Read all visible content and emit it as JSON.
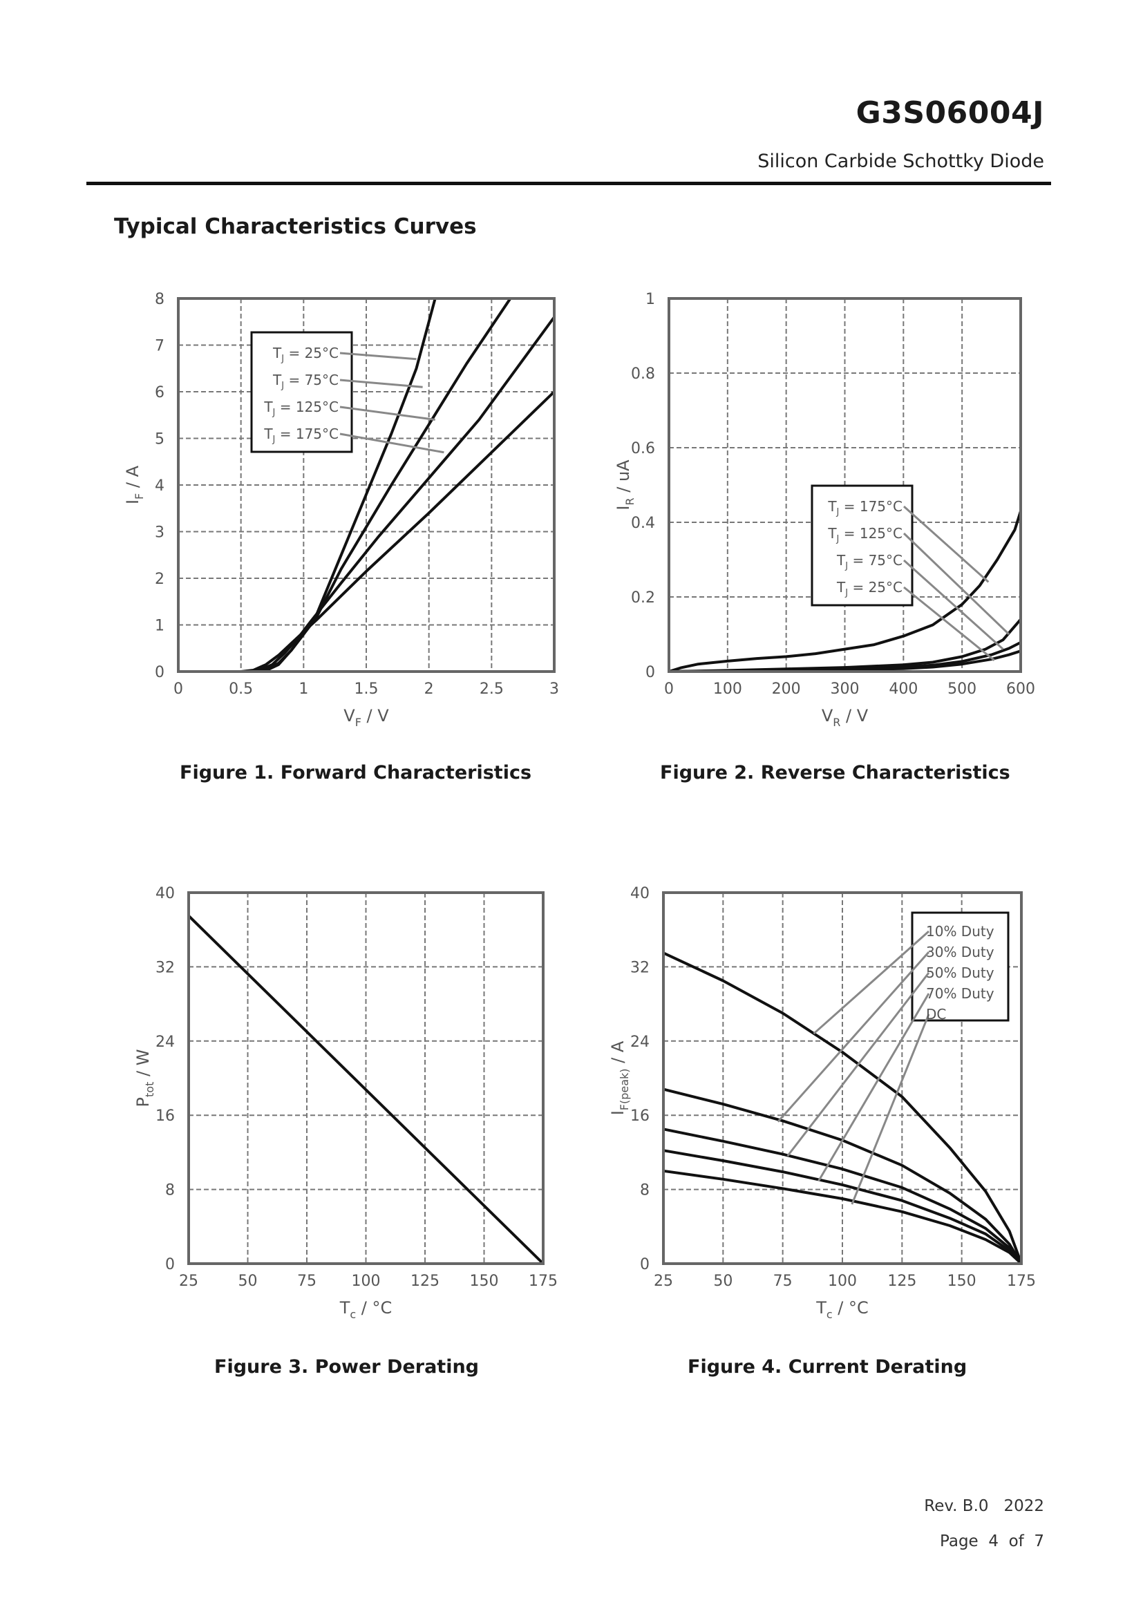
{
  "header": {
    "part_number": "G3S06004J",
    "description": "Silicon Carbide Schottky Diode"
  },
  "section_title": "Typical Characteristics Curves",
  "footer": {
    "revision": "Rev. B.0   2022",
    "page": "Page  4  of  7"
  },
  "chart_data": [
    {
      "type": "line",
      "title": "Figure 1. Forward Characteristics",
      "xlabel_main": "V",
      "xlabel_sub": "F",
      "xlabel_unit": " / V",
      "ylabel_main": "I",
      "ylabel_sub": "F",
      "ylabel_unit": " / A",
      "xlim": [
        0,
        3
      ],
      "ylim": [
        0,
        8
      ],
      "x_ticks": [
        0,
        0.5,
        1,
        1.5,
        2,
        2.5,
        3
      ],
      "x_tick_labels": [
        "0",
        "0.5",
        "1",
        "1.5",
        "2",
        "2.5",
        "3"
      ],
      "y_ticks": [
        0,
        1,
        2,
        3,
        4,
        5,
        6,
        7,
        8
      ],
      "y_tick_labels": [
        "0",
        "1",
        "2",
        "3",
        "4",
        "5",
        "6",
        "7",
        "8"
      ],
      "legend_position": "top-left",
      "legend": [
        {
          "label": "T",
          "sub": "J",
          "rest": " = 25°C",
          "target": [
            1.9,
            6.7
          ]
        },
        {
          "label": "T",
          "sub": "J",
          "rest": " = 75°C",
          "target": [
            1.95,
            6.1
          ]
        },
        {
          "label": "T",
          "sub": "J",
          "rest": " = 125°C",
          "target": [
            2.05,
            5.4
          ]
        },
        {
          "label": "T",
          "sub": "J",
          "rest": " = 175°C",
          "target": [
            2.12,
            4.7
          ]
        }
      ],
      "series": [
        {
          "name": "TJ = 25°C",
          "x": [
            0,
            0.6,
            0.7,
            0.8,
            0.9,
            1.0,
            1.1,
            1.3,
            1.5,
            1.7,
            1.9,
            2.05
          ],
          "y": [
            0,
            0,
            0.02,
            0.15,
            0.45,
            0.8,
            1.2,
            2.5,
            3.8,
            5.1,
            6.5,
            8
          ]
        },
        {
          "name": "TJ = 75°C",
          "x": [
            0,
            0.6,
            0.7,
            0.8,
            0.9,
            1.0,
            1.1,
            1.3,
            1.5,
            1.7,
            2.0,
            2.3,
            2.65
          ],
          "y": [
            0,
            0,
            0.04,
            0.18,
            0.45,
            0.8,
            1.15,
            2.2,
            3.1,
            4.0,
            5.3,
            6.6,
            8
          ]
        },
        {
          "name": "TJ = 125°C",
          "x": [
            0,
            0.55,
            0.65,
            0.75,
            0.85,
            0.95,
            1.05,
            1.3,
            1.6,
            2.0,
            2.4,
            3.0
          ],
          "y": [
            0,
            0,
            0.03,
            0.15,
            0.4,
            0.7,
            1.05,
            1.9,
            2.9,
            4.15,
            5.4,
            7.6
          ]
        },
        {
          "name": "TJ = 175°C",
          "x": [
            0,
            0.5,
            0.6,
            0.7,
            0.8,
            0.9,
            1.0,
            1.1,
            1.5,
            2.0,
            2.5,
            3.0
          ],
          "y": [
            0,
            0,
            0.03,
            0.15,
            0.35,
            0.6,
            0.85,
            1.1,
            2.15,
            3.4,
            4.7,
            6.0
          ]
        }
      ]
    },
    {
      "type": "line",
      "title": "Figure 2. Reverse Characteristics",
      "xlabel_main": "V",
      "xlabel_sub": "R",
      "xlabel_unit": " / V",
      "ylabel_main": "I",
      "ylabel_sub": "R",
      "ylabel_unit": " / uA",
      "xlim": [
        0,
        600
      ],
      "ylim": [
        0,
        1
      ],
      "x_ticks": [
        0,
        100,
        200,
        300,
        400,
        500,
        600
      ],
      "x_tick_labels": [
        "0",
        "100",
        "200",
        "300",
        "400",
        "500",
        "600"
      ],
      "y_ticks": [
        0,
        0.2,
        0.4,
        0.6,
        0.8,
        1
      ],
      "y_tick_labels": [
        "0",
        "0.2",
        "0.4",
        "0.6",
        "0.8",
        "1"
      ],
      "legend_position": "right",
      "legend": [
        {
          "label": "T",
          "sub": "J",
          "rest": " = 175°C",
          "target": [
            545,
            0.24
          ]
        },
        {
          "label": "T",
          "sub": "J",
          "rest": " = 125°C",
          "target": [
            580,
            0.1
          ]
        },
        {
          "label": "T",
          "sub": "J",
          "rest": " = 75°C",
          "target": [
            570,
            0.06
          ]
        },
        {
          "label": "T",
          "sub": "J",
          "rest": " = 25°C",
          "target": [
            555,
            0.03
          ]
        }
      ],
      "series": [
        {
          "name": "TJ = 175°C",
          "x": [
            0,
            20,
            50,
            100,
            150,
            200,
            250,
            300,
            350,
            400,
            450,
            500,
            530,
            560,
            590,
            600
          ],
          "y": [
            0,
            0.01,
            0.02,
            0.028,
            0.035,
            0.04,
            0.048,
            0.06,
            0.072,
            0.095,
            0.125,
            0.18,
            0.23,
            0.3,
            0.38,
            0.43
          ]
        },
        {
          "name": "TJ = 125°C",
          "x": [
            0,
            100,
            200,
            300,
            400,
            450,
            500,
            540,
            570,
            600
          ],
          "y": [
            0,
            0.003,
            0.007,
            0.011,
            0.018,
            0.025,
            0.04,
            0.06,
            0.085,
            0.14
          ]
        },
        {
          "name": "TJ = 75°C",
          "x": [
            0,
            100,
            200,
            300,
            400,
            450,
            500,
            550,
            580,
            600
          ],
          "y": [
            0,
            0.002,
            0.005,
            0.008,
            0.012,
            0.017,
            0.027,
            0.045,
            0.062,
            0.078
          ]
        },
        {
          "name": "TJ = 25°C",
          "x": [
            0,
            100,
            200,
            300,
            400,
            450,
            500,
            550,
            580,
            600
          ],
          "y": [
            0,
            0.001,
            0.003,
            0.005,
            0.008,
            0.012,
            0.02,
            0.033,
            0.045,
            0.055
          ]
        }
      ]
    },
    {
      "type": "line",
      "title": "Figure 3. Power Derating",
      "xlabel_main": "T",
      "xlabel_sub": "c",
      "xlabel_unit": " / °C",
      "ylabel_main": "P",
      "ylabel_sub": "tot",
      "ylabel_unit": " / W",
      "xlim": [
        25,
        175
      ],
      "ylim": [
        0,
        40
      ],
      "x_ticks": [
        25,
        50,
        75,
        100,
        125,
        150,
        175
      ],
      "x_tick_labels": [
        "25",
        "50",
        "75",
        "100",
        "125",
        "150",
        "175"
      ],
      "y_ticks": [
        0,
        8,
        16,
        24,
        32,
        40
      ],
      "y_tick_labels": [
        "0",
        "8",
        "16",
        "24",
        "32",
        "40"
      ],
      "legend": [],
      "series": [
        {
          "name": "Ptot",
          "x": [
            25,
            175
          ],
          "y": [
            37.5,
            0
          ]
        }
      ]
    },
    {
      "type": "line",
      "title": "Figure 4. Current Derating",
      "xlabel_main": "T",
      "xlabel_sub": "c",
      "xlabel_unit": " / °C",
      "ylabel_main": "I",
      "ylabel_sub": "F(peak)",
      "ylabel_unit": " / A",
      "xlim": [
        25,
        175
      ],
      "ylim": [
        0,
        40
      ],
      "x_ticks": [
        25,
        50,
        75,
        100,
        125,
        150,
        175
      ],
      "x_tick_labels": [
        "25",
        "50",
        "75",
        "100",
        "125",
        "150",
        "175"
      ],
      "y_ticks": [
        0,
        8,
        16,
        24,
        32,
        40
      ],
      "y_tick_labels": [
        "0",
        "8",
        "16",
        "24",
        "32",
        "40"
      ],
      "legend_position": "top-right",
      "legend": [
        {
          "label": "10% Duty",
          "sub": "",
          "rest": "",
          "target": [
            88,
            24.8
          ]
        },
        {
          "label": "30% Duty",
          "sub": "",
          "rest": "",
          "target": [
            73,
            15.3
          ]
        },
        {
          "label": "50% Duty",
          "sub": "",
          "rest": "",
          "target": [
            77,
            11.6
          ]
        },
        {
          "label": "70% Duty",
          "sub": "",
          "rest": "",
          "target": [
            90,
            8.9
          ]
        },
        {
          "label": "DC",
          "sub": "",
          "rest": "",
          "target": [
            104,
            6.4
          ]
        }
      ],
      "series": [
        {
          "name": "10% Duty",
          "x": [
            25,
            50,
            75,
            100,
            125,
            145,
            160,
            170,
            175
          ],
          "y": [
            33.5,
            30.5,
            27,
            22.8,
            18,
            12.5,
            7.8,
            3.5,
            0
          ]
        },
        {
          "name": "30% Duty",
          "x": [
            25,
            50,
            75,
            100,
            125,
            145,
            160,
            170,
            175
          ],
          "y": [
            18.8,
            17.2,
            15.4,
            13.3,
            10.6,
            7.6,
            4.8,
            2.1,
            0
          ]
        },
        {
          "name": "50% Duty",
          "x": [
            25,
            50,
            75,
            100,
            125,
            145,
            160,
            170,
            175
          ],
          "y": [
            14.5,
            13.2,
            11.8,
            10.2,
            8.2,
            5.9,
            3.8,
            1.7,
            0
          ]
        },
        {
          "name": "70% Duty",
          "x": [
            25,
            50,
            75,
            100,
            125,
            145,
            160,
            170,
            175
          ],
          "y": [
            12.2,
            11.1,
            9.9,
            8.5,
            6.8,
            4.9,
            3.2,
            1.4,
            0
          ]
        },
        {
          "name": "DC",
          "x": [
            25,
            50,
            75,
            100,
            125,
            145,
            160,
            170,
            175
          ],
          "y": [
            10,
            9.1,
            8.1,
            7.0,
            5.6,
            4.1,
            2.6,
            1.2,
            0
          ]
        }
      ]
    }
  ]
}
